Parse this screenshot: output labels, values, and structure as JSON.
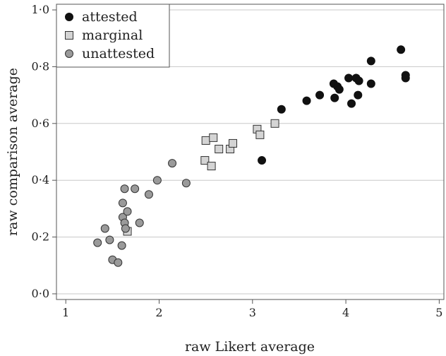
{
  "chart_data": {
    "type": "scatter",
    "title": "",
    "xlabel": "raw Likert average",
    "ylabel": "raw comparison average",
    "xlim": [
      0.9,
      5.05
    ],
    "ylim": [
      -0.02,
      1.02
    ],
    "x_ticks": [
      1,
      2,
      3,
      4,
      5
    ],
    "x_tick_labels": [
      "1",
      "2",
      "3",
      "4",
      "5"
    ],
    "y_ticks": [
      0.0,
      0.2,
      0.4,
      0.6,
      0.8,
      1.0
    ],
    "y_tick_labels": [
      "0·0",
      "0·2",
      "0·4",
      "0·6",
      "0·8",
      "1·0"
    ],
    "grid": "horizontal",
    "legend_position": "top-left",
    "series": [
      {
        "name": "attested",
        "marker": "circle",
        "color": "#111111",
        "points": [
          [
            3.1,
            0.47
          ],
          [
            3.31,
            0.65
          ],
          [
            3.58,
            0.68
          ],
          [
            3.72,
            0.7
          ],
          [
            3.87,
            0.74
          ],
          [
            3.88,
            0.69
          ],
          [
            3.91,
            0.73
          ],
          [
            3.93,
            0.72
          ],
          [
            4.03,
            0.76
          ],
          [
            4.06,
            0.67
          ],
          [
            4.11,
            0.76
          ],
          [
            4.13,
            0.7
          ],
          [
            4.14,
            0.75
          ],
          [
            4.27,
            0.82
          ],
          [
            4.27,
            0.74
          ],
          [
            4.59,
            0.86
          ],
          [
            4.64,
            0.77
          ],
          [
            4.64,
            0.76
          ]
        ]
      },
      {
        "name": "marginal",
        "marker": "square",
        "color": "#d4d4d4",
        "points": [
          [
            1.66,
            0.22
          ],
          [
            2.49,
            0.47
          ],
          [
            2.5,
            0.54
          ],
          [
            2.56,
            0.45
          ],
          [
            2.58,
            0.55
          ],
          [
            2.64,
            0.51
          ],
          [
            2.76,
            0.51
          ],
          [
            2.79,
            0.53
          ],
          [
            3.05,
            0.58
          ],
          [
            3.08,
            0.56
          ],
          [
            3.24,
            0.6
          ]
        ]
      },
      {
        "name": "unattested",
        "marker": "circle",
        "color": "#9a9a9a",
        "points": [
          [
            1.34,
            0.18
          ],
          [
            1.42,
            0.23
          ],
          [
            1.47,
            0.19
          ],
          [
            1.5,
            0.12
          ],
          [
            1.56,
            0.11
          ],
          [
            1.6,
            0.17
          ],
          [
            1.61,
            0.27
          ],
          [
            1.61,
            0.32
          ],
          [
            1.63,
            0.37
          ],
          [
            1.63,
            0.25
          ],
          [
            1.64,
            0.23
          ],
          [
            1.66,
            0.29
          ],
          [
            1.74,
            0.37
          ],
          [
            1.79,
            0.25
          ],
          [
            1.89,
            0.35
          ],
          [
            1.98,
            0.4
          ],
          [
            2.14,
            0.46
          ],
          [
            2.29,
            0.39
          ]
        ]
      }
    ]
  },
  "colors": {
    "attested": "#111111",
    "marginal": "#d4d4d4",
    "unattested": "#9a9a9a",
    "grid": "#c8c8c8",
    "axis": "#555555"
  }
}
